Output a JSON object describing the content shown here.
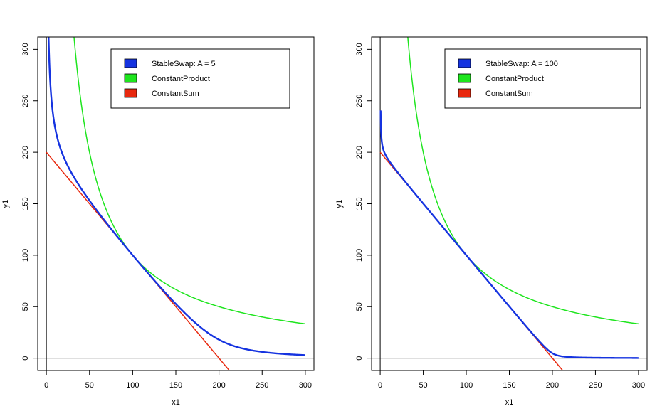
{
  "chart_data": [
    {
      "type": "line",
      "title": "",
      "xlabel": "x1",
      "ylabel": "y1",
      "xlim": [
        -10,
        310
      ],
      "ylim": [
        -12,
        312
      ],
      "xticks": [
        0,
        50,
        100,
        150,
        200,
        250,
        300
      ],
      "yticks": [
        0,
        50,
        100,
        150,
        200,
        250,
        300
      ],
      "reference_lines": {
        "horizontal": 0,
        "vertical": 0
      },
      "grid": false,
      "legend_position": "top-right",
      "series": [
        {
          "name": "StableSwap: A = 5",
          "legend_label": "StableSwap: A = 5",
          "color": "#1533e0",
          "model": "stableswap",
          "A": 5,
          "D": 200,
          "x_range": [
            1,
            300
          ]
        },
        {
          "name": "ConstantProduct",
          "legend_label": "ConstantProduct",
          "color": "#1ee51e",
          "model": "constant_product",
          "k": 10000,
          "x_range": [
            30,
            300
          ]
        },
        {
          "name": "ConstantSum",
          "legend_label": "ConstantSum",
          "color": "#e8280e",
          "model": "constant_sum",
          "sum": 200,
          "x_range": [
            0,
            212
          ]
        }
      ]
    },
    {
      "type": "line",
      "title": "",
      "xlabel": "x1",
      "ylabel": "y1",
      "xlim": [
        -10,
        310
      ],
      "ylim": [
        -12,
        312
      ],
      "xticks": [
        0,
        50,
        100,
        150,
        200,
        250,
        300
      ],
      "yticks": [
        0,
        50,
        100,
        150,
        200,
        250,
        300
      ],
      "reference_lines": {
        "horizontal": 0,
        "vertical": 0
      },
      "grid": false,
      "legend_position": "top-right",
      "series": [
        {
          "name": "StableSwap: A = 100",
          "legend_label": "StableSwap: A = 100",
          "color": "#1533e0",
          "model": "stableswap",
          "A": 100,
          "D": 200,
          "x_range": [
            0.5,
            300
          ]
        },
        {
          "name": "ConstantProduct",
          "legend_label": "ConstantProduct",
          "color": "#1ee51e",
          "model": "constant_product",
          "k": 10000,
          "x_range": [
            32,
            300
          ]
        },
        {
          "name": "ConstantSum",
          "legend_label": "ConstantSum",
          "color": "#e8280e",
          "model": "constant_sum",
          "sum": 200,
          "x_range": [
            0,
            212
          ]
        }
      ]
    }
  ]
}
